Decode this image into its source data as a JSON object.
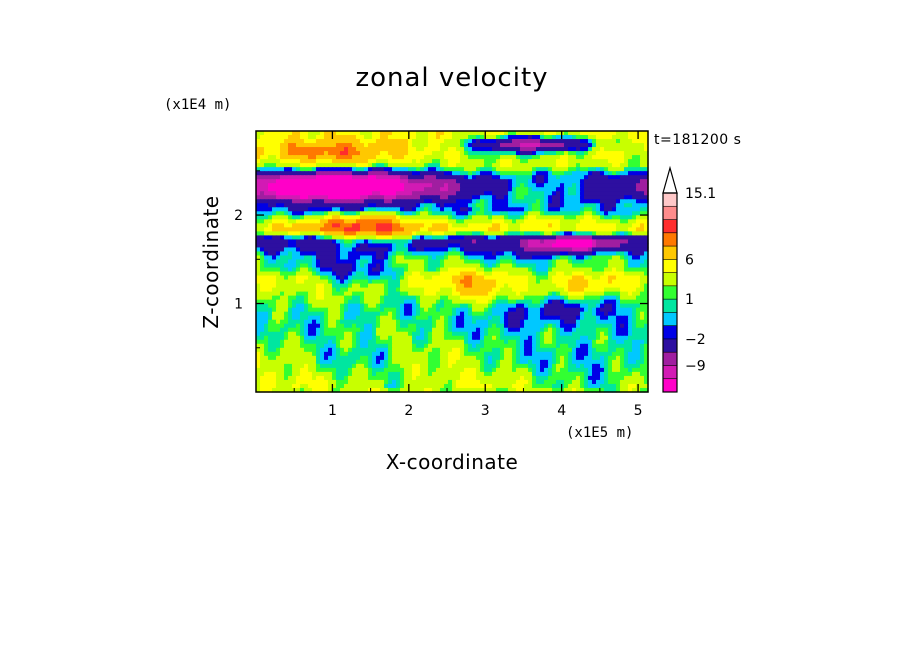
{
  "chart_data": {
    "type": "heatmap",
    "title": "zonal velocity",
    "xlabel": "X-coordinate",
    "ylabel": "Z-coordinate",
    "x_unit_label": "(x1E5 m)",
    "y_unit_label": "(x1E4 m)",
    "time_label": "t=181200 s",
    "xlim": [
      0,
      5.13
    ],
    "ylim": [
      0,
      2.95
    ],
    "x_ticks": [
      1,
      2,
      3,
      4,
      5
    ],
    "x_tick_labels": [
      "1",
      "2",
      "3",
      "4",
      "5"
    ],
    "y_ticks": [
      1,
      2
    ],
    "y_tick_labels": [
      "1",
      "2"
    ],
    "colorbar": {
      "extend_max": true,
      "levels": [
        -15,
        -12,
        -9,
        -6,
        -2,
        -1,
        0,
        1,
        2,
        4,
        6,
        9,
        12,
        15.1
      ],
      "colors": [
        "#ff00c8",
        "#d21ab4",
        "#a01ea0",
        "#2d0fa0",
        "#0000e6",
        "#00c8ff",
        "#00e6a0",
        "#32ff32",
        "#c8ff00",
        "#ffff00",
        "#ffc800",
        "#ff7800",
        "#ff2d2d",
        "#ff8c8c",
        "#ffc8c8"
      ],
      "tick_labels": [
        {
          "value": 15.1,
          "label": "15.1"
        },
        {
          "value": 6,
          "label": "6"
        },
        {
          "value": 1,
          "label": "1"
        },
        {
          "value": -2,
          "label": "−2"
        },
        {
          "value": -9,
          "label": "−9"
        }
      ]
    },
    "bands": [
      {
        "z": 0.05,
        "value": 3,
        "amp": 1.5
      },
      {
        "z": 0.45,
        "value": 1.5,
        "amp": 2
      },
      {
        "z": 0.9,
        "value": 0.8,
        "amp": 2
      },
      {
        "z": 1.25,
        "value": 3,
        "amp": 2.5
      },
      {
        "z": 1.45,
        "value": 0.5,
        "amp": 3
      },
      {
        "z": 1.7,
        "value": -3,
        "amp": 3
      },
      {
        "z": 1.85,
        "value": 5,
        "amp": 2.5
      },
      {
        "z": 2.1,
        "value": -1,
        "amp": 3
      },
      {
        "z": 2.35,
        "value": -8,
        "amp": 4
      },
      {
        "z": 2.6,
        "value": 3,
        "amp": 3
      },
      {
        "z": 2.85,
        "value": 5,
        "amp": 2
      }
    ],
    "features": [
      {
        "x": 1.0,
        "z": 2.3,
        "sx": 0.9,
        "sz": 0.16,
        "value": -14
      },
      {
        "x": 3.6,
        "z": 2.8,
        "sx": 0.8,
        "sz": 0.09,
        "value": -14
      },
      {
        "x": 4.1,
        "z": 1.68,
        "sx": 0.55,
        "sz": 0.09,
        "value": -13
      },
      {
        "x": 3.75,
        "z": 2.35,
        "sx": 0.9,
        "sz": 0.15,
        "value": 8
      },
      {
        "x": 1.4,
        "z": 1.85,
        "sx": 0.7,
        "sz": 0.14,
        "value": 8
      },
      {
        "x": 1.0,
        "z": 2.7,
        "sx": 0.7,
        "sz": 0.12,
        "value": 8
      },
      {
        "x": 3.8,
        "z": 0.95,
        "sx": 1.0,
        "sz": 0.25,
        "value": -3.5
      },
      {
        "x": 1.2,
        "z": 1.35,
        "sx": 0.5,
        "sz": 0.12,
        "value": -3
      },
      {
        "x": 4.6,
        "z": 0.3,
        "sx": 0.5,
        "sz": 0.3,
        "value": -3
      },
      {
        "x": 2.9,
        "z": 1.2,
        "sx": 0.6,
        "sz": 0.25,
        "value": 4.5
      },
      {
        "x": 4.2,
        "z": 1.2,
        "sx": 0.5,
        "sz": 0.18,
        "value": 5
      }
    ]
  }
}
